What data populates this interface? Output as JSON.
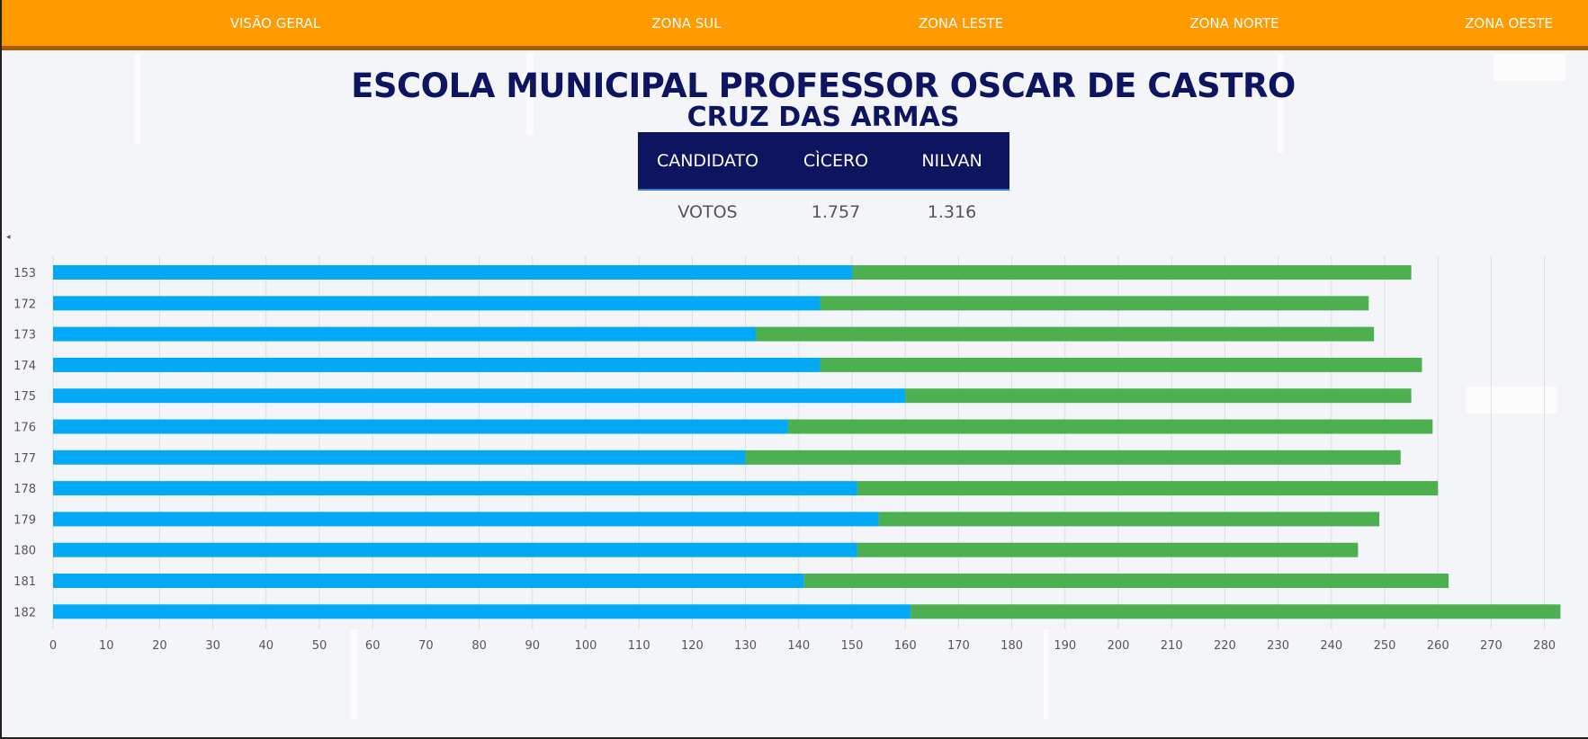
{
  "nav": {
    "items": [
      {
        "label": "VISÃO GERAL"
      },
      {
        "label": "ZONA SUL"
      },
      {
        "label": "ZONA LESTE"
      },
      {
        "label": "ZONA NORTE"
      },
      {
        "label": "ZONA OESTE"
      }
    ]
  },
  "header": {
    "title": "ESCOLA MUNICIPAL PROFESSOR OSCAR DE CASTRO",
    "subtitle": "CRUZ DAS ARMAS"
  },
  "votes_table": {
    "headers": [
      "CANDIDATO",
      "CÌCERO",
      "NILVAN"
    ],
    "row": [
      "VOTOS",
      "1.757",
      "1.316"
    ]
  },
  "colors": {
    "nav": "#ff9a00",
    "navy": "#0d1560",
    "series_cicero": "#03a9f4",
    "series_nilvan": "#4caf50"
  },
  "chart_data": {
    "type": "bar",
    "orientation": "horizontal",
    "stacked": true,
    "categories": [
      "153",
      "172",
      "173",
      "174",
      "175",
      "176",
      "177",
      "178",
      "179",
      "180",
      "181",
      "182"
    ],
    "series": [
      {
        "values": [
          150,
          144,
          132,
          144,
          160,
          138,
          130,
          151,
          155,
          151,
          141,
          161
        ]
      },
      {
        "values": [
          105,
          103,
          116,
          113,
          95,
          121,
          123,
          109,
          94,
          94,
          121,
          122
        ]
      }
    ],
    "xlim": [
      0,
      285
    ],
    "xticks": [
      "0",
      "10",
      "20",
      "30",
      "40",
      "50",
      "60",
      "70",
      "80",
      "90",
      "100",
      "110",
      "120",
      "130",
      "140",
      "150",
      "160",
      "170",
      "180",
      "190",
      "200",
      "210",
      "220",
      "230",
      "240",
      "250",
      "260",
      "270",
      "280"
    ],
    "grid": true
  }
}
